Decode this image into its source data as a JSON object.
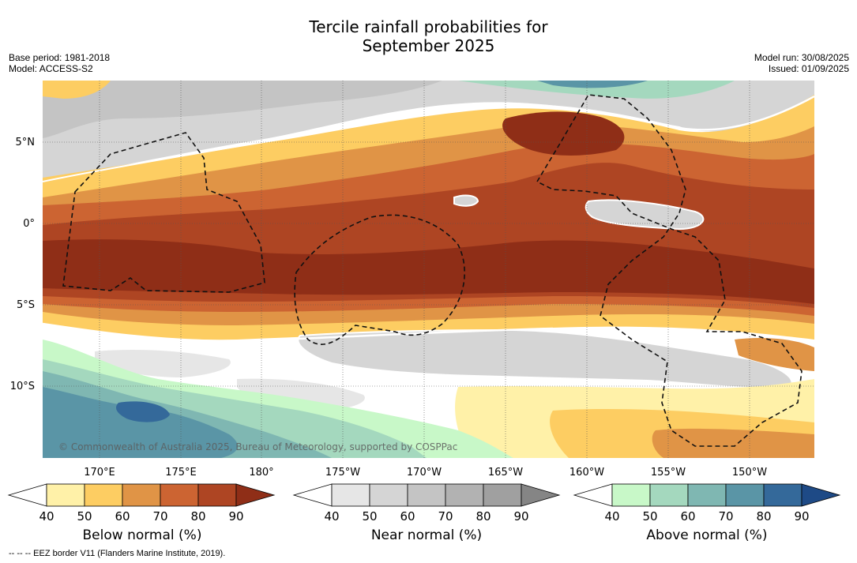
{
  "title_line1": "Tercile rainfall probabilities for",
  "title_line2": "September 2025",
  "meta": {
    "base_period": "Base period: 1981-2018",
    "model": "Model: ACCESS-S2",
    "model_run": "Model run: 30/08/2025",
    "issued": "Issued: 01/09/2025"
  },
  "axes": {
    "lat_labels": [
      "5°N",
      "0°",
      "5°S",
      "10°S"
    ],
    "lon_labels": [
      "170°E",
      "175°E",
      "180°",
      "175°W",
      "170°W",
      "165°W",
      "160°W",
      "155°W",
      "150°W"
    ]
  },
  "copyright": "© Commonwealth of Australia 2025, Bureau of Meteorology, supported by COSPPac",
  "colorbars": [
    {
      "label": "Below normal (%)",
      "ticks": [
        "40",
        "50",
        "60",
        "70",
        "80",
        "90"
      ],
      "colors": [
        "#fff1a8",
        "#fdcd62",
        "#e09446",
        "#cc6432",
        "#ae4523",
        "#8f2e17"
      ]
    },
    {
      "label": "Near normal (%)",
      "ticks": [
        "40",
        "50",
        "60",
        "70",
        "80",
        "90"
      ],
      "colors": [
        "#e6e6e6",
        "#d5d5d5",
        "#c4c4c4",
        "#b2b2b2",
        "#a0a0a0",
        "#858585"
      ]
    },
    {
      "label": "Above normal (%)",
      "ticks": [
        "40",
        "50",
        "60",
        "70",
        "80",
        "90"
      ],
      "colors": [
        "#c8f8c8",
        "#a4d8be",
        "#7fb7b2",
        "#5a95a6",
        "#34699a",
        "#1e4a86"
      ]
    }
  ],
  "footnote": "--  --  -- EEZ border V11 (Flanders Marine Institute, 2019)."
}
